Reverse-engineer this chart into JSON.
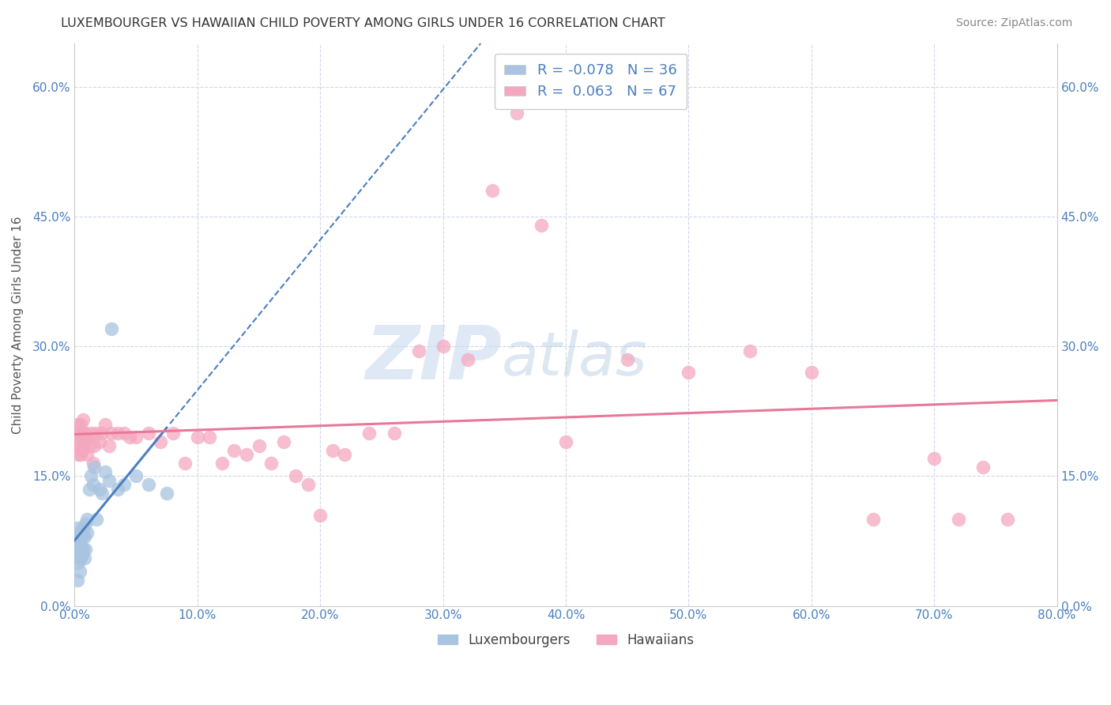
{
  "title": "LUXEMBOURGER VS HAWAIIAN CHILD POVERTY AMONG GIRLS UNDER 16 CORRELATION CHART",
  "source": "Source: ZipAtlas.com",
  "ylabel": "Child Poverty Among Girls Under 16",
  "xlim": [
    0,
    0.8
  ],
  "ylim": [
    0,
    0.65
  ],
  "xticks": [
    0.0,
    0.1,
    0.2,
    0.3,
    0.4,
    0.5,
    0.6,
    0.7,
    0.8
  ],
  "xticklabels": [
    "0.0%",
    "10.0%",
    "20.0%",
    "30.0%",
    "40.0%",
    "50.0%",
    "60.0%",
    "70.0%",
    "80.0%"
  ],
  "yticks": [
    0.0,
    0.15,
    0.3,
    0.45,
    0.6
  ],
  "yticklabels": [
    "0.0%",
    "15.0%",
    "30.0%",
    "45.0%",
    "60.0%"
  ],
  "luxembourger_color": "#a8c4e0",
  "hawaiian_color": "#f4a8c0",
  "trend_blue": "#4a7fc1",
  "trend_pink": "#e87898",
  "legend_R_lux": "-0.078",
  "legend_N_lux": "36",
  "legend_R_haw": "0.063",
  "legend_N_haw": "67",
  "lux_x": [
    0.001,
    0.001,
    0.002,
    0.002,
    0.003,
    0.003,
    0.003,
    0.004,
    0.004,
    0.005,
    0.005,
    0.006,
    0.006,
    0.007,
    0.007,
    0.008,
    0.008,
    0.009,
    0.009,
    0.01,
    0.01,
    0.012,
    0.013,
    0.015,
    0.016,
    0.018,
    0.02,
    0.022,
    0.025,
    0.028,
    0.03,
    0.035,
    0.04,
    0.05,
    0.06,
    0.075
  ],
  "lux_y": [
    0.055,
    0.07,
    0.03,
    0.09,
    0.05,
    0.06,
    0.075,
    0.04,
    0.085,
    0.055,
    0.07,
    0.06,
    0.08,
    0.065,
    0.09,
    0.055,
    0.08,
    0.065,
    0.095,
    0.085,
    0.1,
    0.135,
    0.15,
    0.14,
    0.16,
    0.1,
    0.135,
    0.13,
    0.155,
    0.145,
    0.32,
    0.135,
    0.14,
    0.15,
    0.14,
    0.13
  ],
  "haw_x": [
    0.001,
    0.002,
    0.002,
    0.003,
    0.003,
    0.004,
    0.004,
    0.005,
    0.005,
    0.006,
    0.006,
    0.007,
    0.007,
    0.008,
    0.008,
    0.009,
    0.01,
    0.01,
    0.012,
    0.013,
    0.015,
    0.016,
    0.018,
    0.02,
    0.022,
    0.025,
    0.028,
    0.03,
    0.035,
    0.04,
    0.045,
    0.05,
    0.06,
    0.07,
    0.08,
    0.09,
    0.1,
    0.11,
    0.12,
    0.13,
    0.14,
    0.15,
    0.16,
    0.17,
    0.18,
    0.19,
    0.2,
    0.21,
    0.22,
    0.24,
    0.26,
    0.28,
    0.3,
    0.32,
    0.34,
    0.36,
    0.38,
    0.4,
    0.45,
    0.5,
    0.55,
    0.6,
    0.65,
    0.7,
    0.72,
    0.74,
    0.76
  ],
  "haw_y": [
    0.2,
    0.185,
    0.21,
    0.175,
    0.195,
    0.185,
    0.2,
    0.175,
    0.21,
    0.195,
    0.18,
    0.2,
    0.215,
    0.185,
    0.195,
    0.2,
    0.175,
    0.195,
    0.185,
    0.2,
    0.165,
    0.185,
    0.2,
    0.19,
    0.2,
    0.21,
    0.185,
    0.2,
    0.2,
    0.2,
    0.195,
    0.195,
    0.2,
    0.19,
    0.2,
    0.165,
    0.195,
    0.195,
    0.165,
    0.18,
    0.175,
    0.185,
    0.165,
    0.19,
    0.15,
    0.14,
    0.105,
    0.18,
    0.175,
    0.2,
    0.2,
    0.295,
    0.3,
    0.285,
    0.48,
    0.57,
    0.44,
    0.19,
    0.285,
    0.27,
    0.295,
    0.27,
    0.1,
    0.17,
    0.1,
    0.16,
    0.1
  ],
  "watermark_zip": "ZIP",
  "watermark_atlas": "atlas",
  "background_color": "#ffffff",
  "grid_color": "#d0d8e8",
  "tick_label_color": "#4a7fc1"
}
